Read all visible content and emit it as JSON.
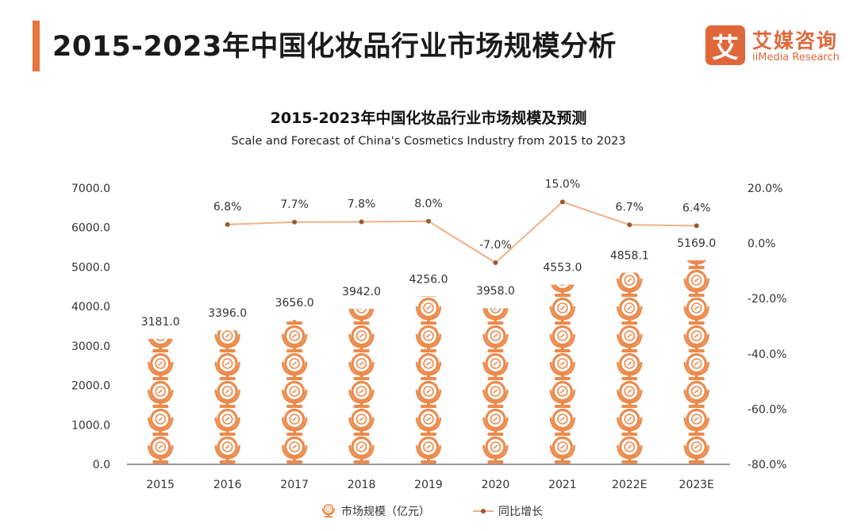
{
  "header": {
    "title": "2015-2023年中国化妆品行业市场规模分析"
  },
  "logo": {
    "mark": "艾",
    "name_cn": "艾媒咨询",
    "name_en": "iiMedia Research"
  },
  "colors": {
    "accent": "#e8743f",
    "bar_icon": "#ec8a4c",
    "line": "#f0b088",
    "marker": "#9a5a2e"
  },
  "chart_data": {
    "type": "bar",
    "title": "2015-2023年中国化妆品行业市场规模及预测",
    "subtitle": "Scale and Forecast of China's Cosmetics Industry from 2015 to 2023",
    "categories": [
      "2015",
      "2016",
      "2017",
      "2018",
      "2019",
      "2020",
      "2021",
      "2022E",
      "2023E"
    ],
    "series": [
      {
        "name": "市场规模（亿元）",
        "type": "pictorial-bar",
        "axis": "left",
        "values": [
          3181.0,
          3396.0,
          3656.0,
          3942.0,
          4256.0,
          3958.0,
          4553.0,
          4858.1,
          5169.0
        ],
        "labels": [
          "3181.0",
          "3396.0",
          "3656.0",
          "3942.0",
          "4256.0",
          "3958.0",
          "4553.0",
          "4858.1",
          "5169.0"
        ]
      },
      {
        "name": "同比增长",
        "type": "line",
        "axis": "right",
        "values": [
          6.8,
          7.7,
          7.8,
          8.0,
          -7.0,
          15.0,
          6.7,
          6.4
        ],
        "x": [
          "2016",
          "2017",
          "2018",
          "2019",
          "2020",
          "2021",
          "2022E",
          "2023E"
        ],
        "labels": [
          "6.8%",
          "7.7%",
          "7.8%",
          "8.0%",
          "-7.0%",
          "15.0%",
          "6.7%",
          "6.4%"
        ]
      }
    ],
    "y_left": {
      "ylim": [
        0,
        7000
      ],
      "ticks": [
        "0.0",
        "1000.0",
        "2000.0",
        "3000.0",
        "4000.0",
        "5000.0",
        "6000.0",
        "7000.0"
      ]
    },
    "y_right": {
      "ylim": [
        -80,
        20
      ],
      "ticks": [
        "-80.0%",
        "-60.0%",
        "-40.0%",
        "-20.0%",
        "0.0%",
        "20.0%"
      ]
    },
    "grid": false,
    "legend": "bottom-center"
  }
}
